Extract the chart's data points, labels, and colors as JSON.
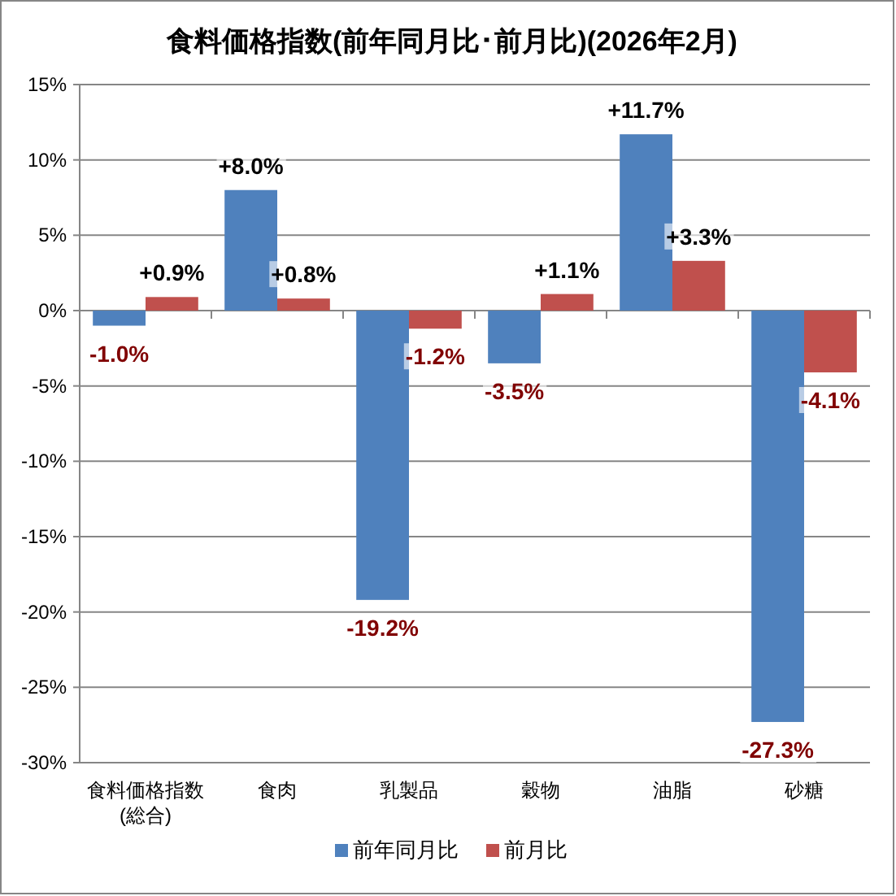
{
  "chart_data": {
    "type": "bar",
    "title": "食料価格指数(前年同月比･前月比)(2026年2月)",
    "categories": [
      "食料価格指数\n(総合)",
      "食肉",
      "乳製品",
      "穀物",
      "油脂",
      "砂糖"
    ],
    "series": [
      {
        "name": "前年同月比",
        "color": "#4f81bd",
        "values": [
          -1.0,
          8.0,
          -19.2,
          -3.5,
          11.7,
          -27.3
        ],
        "value_labels": [
          "-1.0%",
          "+8.0%",
          "-19.2%",
          "-3.5%",
          "+11.7%",
          "-27.3%"
        ]
      },
      {
        "name": "前月比",
        "color": "#c0504d",
        "values": [
          0.9,
          0.8,
          -1.2,
          1.1,
          3.3,
          -4.1
        ],
        "value_labels": [
          "+0.9%",
          "+0.8%",
          "-1.2%",
          "+1.1%",
          "+3.3%",
          "-4.1%"
        ]
      }
    ],
    "ylim": [
      -30,
      15
    ],
    "yticks": [
      {
        "value": -30,
        "label": "-30%"
      },
      {
        "value": -25,
        "label": "-25%"
      },
      {
        "value": -20,
        "label": "-20%"
      },
      {
        "value": -15,
        "label": "-15%"
      },
      {
        "value": -10,
        "label": "-10%"
      },
      {
        "value": -5,
        "label": "-5%"
      },
      {
        "value": 0,
        "label": "0%"
      },
      {
        "value": 5,
        "label": "5%"
      },
      {
        "value": 10,
        "label": "10%"
      },
      {
        "value": 15,
        "label": "15%"
      }
    ],
    "grid": "y",
    "legend": "bottom"
  }
}
